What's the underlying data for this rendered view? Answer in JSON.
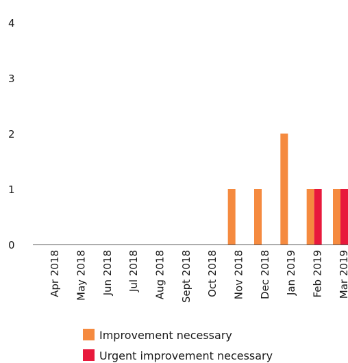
{
  "chart_data": {
    "type": "bar",
    "categories": [
      "Apr 2018",
      "May 2018",
      "Jun 2018",
      "Jul 2018",
      "Aug 2018",
      "Sept 2018",
      "Oct 2018",
      "Nov 2018",
      "Dec 2018",
      "Jan 2019",
      "Feb 2019",
      "Mar 2019"
    ],
    "series": [
      {
        "name": "Improvement necessary",
        "color": "#f58a3f",
        "values": [
          0,
          0,
          0,
          0,
          0,
          0,
          0,
          1,
          1,
          2,
          1,
          1
        ]
      },
      {
        "name": "Urgent improvement necessary",
        "color": "#e8193c",
        "values": [
          0,
          0,
          0,
          0,
          0,
          0,
          0,
          0,
          0,
          0,
          1,
          1
        ]
      }
    ],
    "yticks": [
      "0",
      "1",
      "2",
      "3",
      "4"
    ],
    "ylim": [
      0,
      4
    ],
    "grid": false,
    "legend": "bottom"
  }
}
